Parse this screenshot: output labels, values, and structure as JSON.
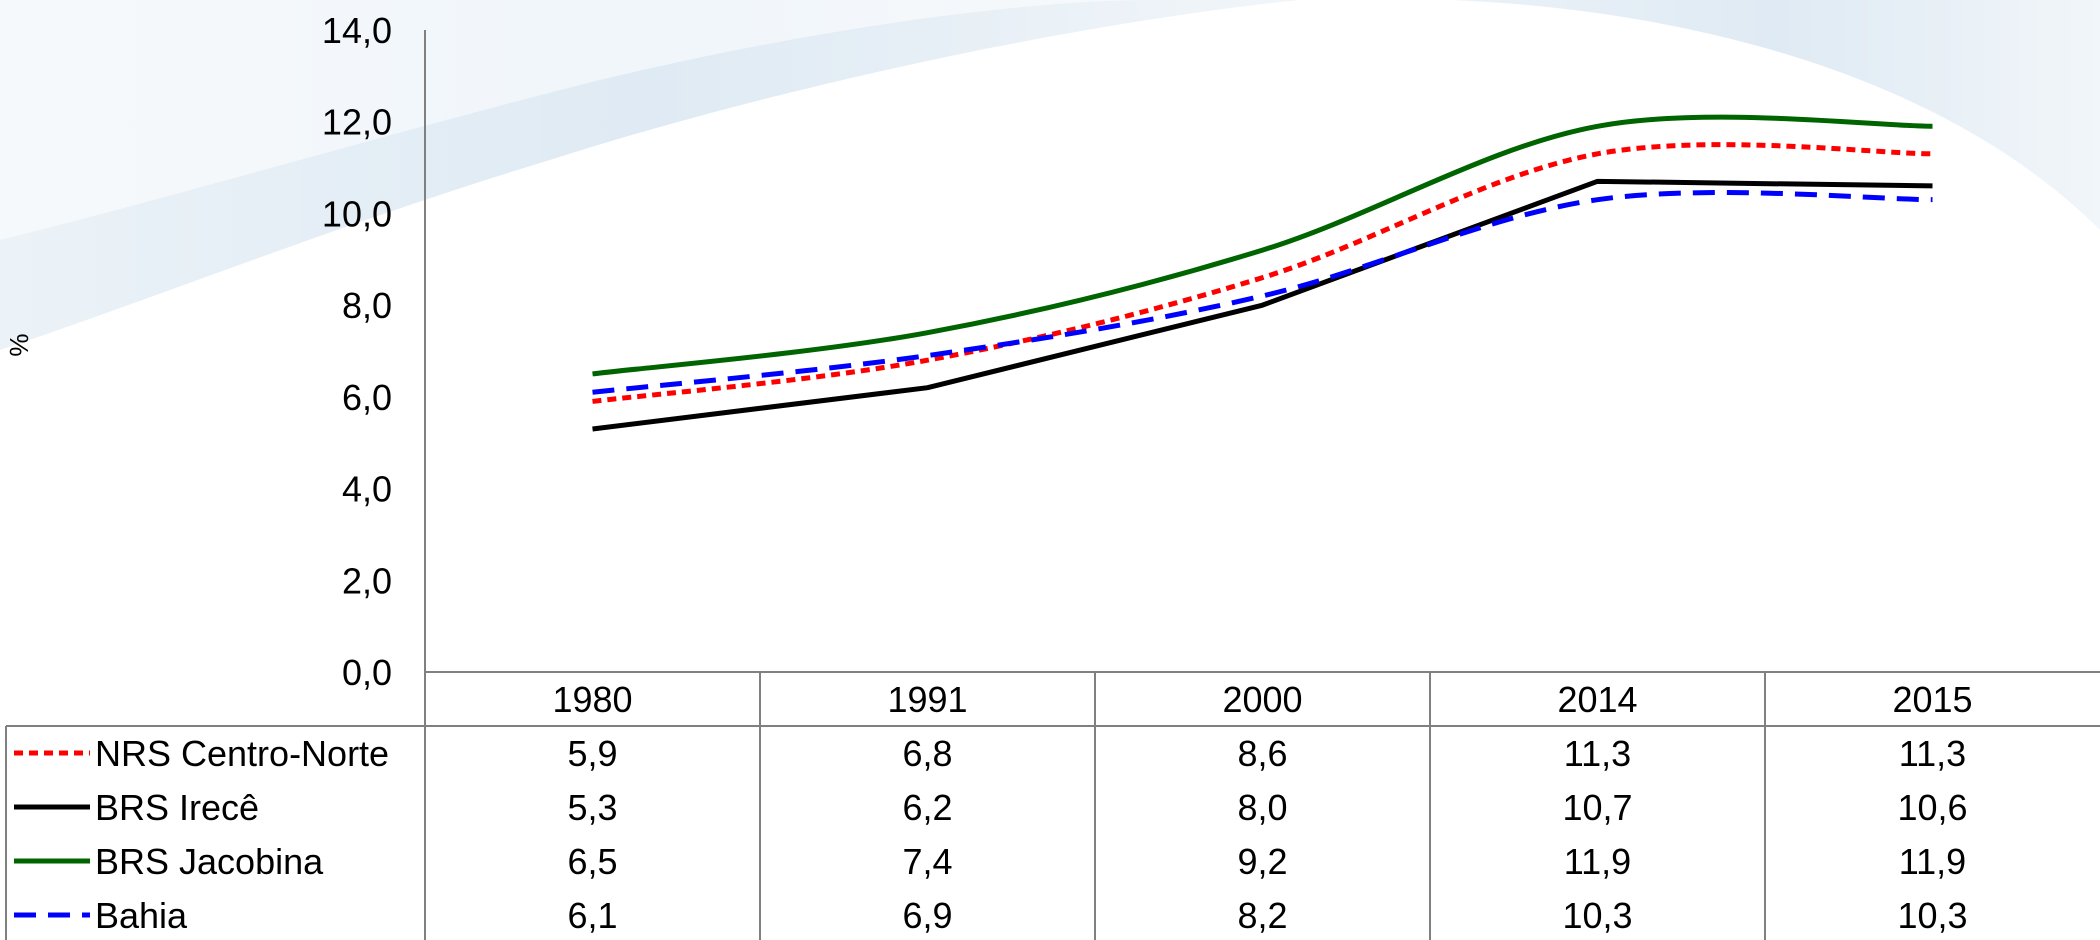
{
  "chart_data": {
    "type": "line",
    "title": "",
    "xlabel": "",
    "ylabel": "%",
    "categories": [
      "1980",
      "1991",
      "2000",
      "2014",
      "2015"
    ],
    "ylim": [
      0,
      14
    ],
    "yticks": [
      "0,0",
      "2,0",
      "4,0",
      "6,0",
      "8,0",
      "10,0",
      "12,0",
      "14,0"
    ],
    "legend_placement": "data-table-below",
    "series": [
      {
        "name": "NRS Centro-Norte",
        "values": [
          5.9,
          6.8,
          8.6,
          11.3,
          11.3
        ],
        "labels": [
          "5,9",
          "6,8",
          "8,6",
          "11,3",
          "11,3"
        ],
        "color": "#ff0000",
        "style": "dotted",
        "smooth": true
      },
      {
        "name": "BRS Irecê",
        "values": [
          5.3,
          6.2,
          8.0,
          10.7,
          10.6
        ],
        "labels": [
          "5,3",
          "6,2",
          "8,0",
          "10,7",
          "10,6"
        ],
        "color": "#000000",
        "style": "solid",
        "smooth": false
      },
      {
        "name": "BRS Jacobina",
        "values": [
          6.5,
          7.4,
          9.2,
          11.9,
          11.9
        ],
        "labels": [
          "6,5",
          "7,4",
          "9,2",
          "11,9",
          "11,9"
        ],
        "color": "#006400",
        "style": "solid",
        "smooth": true
      },
      {
        "name": "Bahia",
        "values": [
          6.1,
          6.9,
          8.2,
          10.3,
          10.3
        ],
        "labels": [
          "6,1",
          "6,9",
          "8,2",
          "10,3",
          "10,3"
        ],
        "color": "#0000ff",
        "style": "dashed",
        "smooth": true
      }
    ]
  }
}
